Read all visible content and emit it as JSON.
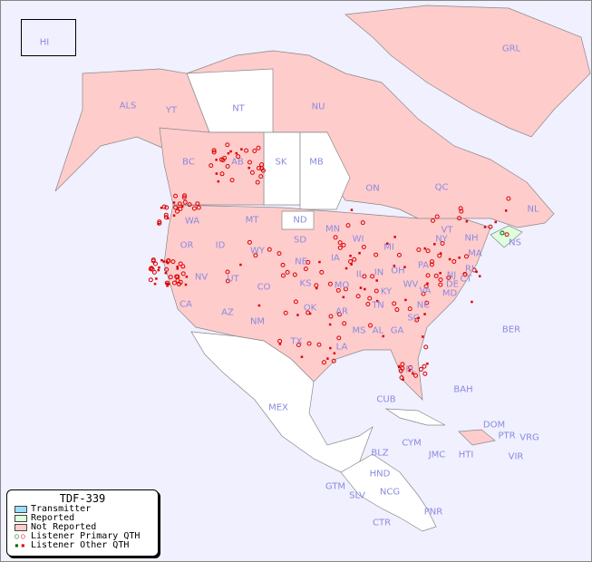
{
  "legend": {
    "title": "TDF-339",
    "items": [
      {
        "label": "Transmitter",
        "color": "#99ddff"
      },
      {
        "label": "Reported",
        "color": "#ddffdd"
      },
      {
        "label": "Not Reported",
        "color": "#ffcccc"
      },
      {
        "label": "Listener Primary QTH",
        "symbol": "circle",
        "colors": [
          "#006600",
          "#dd0000"
        ]
      },
      {
        "label": "Listener Other QTH",
        "symbol": "square",
        "colors": [
          "#006600",
          "#dd0000"
        ]
      }
    ]
  },
  "colors": {
    "background": "#f0f0ff",
    "not_reported": "#ffcccc",
    "reported": "#ddffdd",
    "unlisted": "#ffffff",
    "marker": "#dd0000",
    "label": "#8a8ae0"
  },
  "regions": [
    "HI",
    "ALS",
    "YT",
    "NT",
    "NU",
    "GRL",
    "BC",
    "AB",
    "SK",
    "MB",
    "ON",
    "QC",
    "NL",
    "NS",
    "WA",
    "OR",
    "ID",
    "MT",
    "WY",
    "ND",
    "SD",
    "NE",
    "MN",
    "WI",
    "IA",
    "IL",
    "KS",
    "MO",
    "UT",
    "CO",
    "NV",
    "CA",
    "AZ",
    "NM",
    "OK",
    "TX",
    "AR",
    "LA",
    "MS",
    "AL",
    "GA",
    "TN",
    "KY",
    "IN",
    "OH",
    "MI",
    "PA",
    "NY",
    "WV",
    "VA",
    "NC",
    "SC",
    "FL",
    "MD",
    "DE",
    "NJ",
    "CT",
    "MA",
    "VT",
    "NH",
    "RI",
    "BER",
    "BAH",
    "CUB",
    "MEX",
    "DOM",
    "PTR",
    "VRG",
    "CYM",
    "HTI",
    "JMC",
    "VIR",
    "BLZ",
    "HND",
    "GTM",
    "SLV",
    "NCG",
    "CTR",
    "PNR"
  ]
}
